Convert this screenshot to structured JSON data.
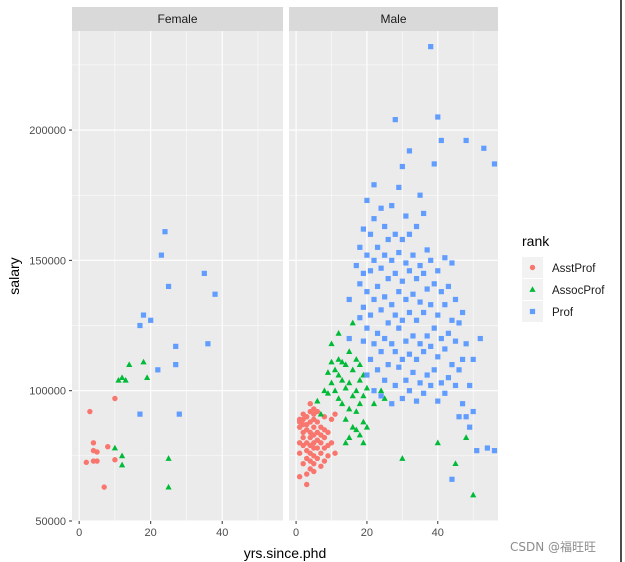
{
  "chart_data": {
    "type": "scatter",
    "facet_by": "sex",
    "facets": [
      "Female",
      "Male"
    ],
    "xlabel": "yrs.since.phd",
    "ylabel": "salary",
    "xlim": [
      -2,
      57
    ],
    "ylim": [
      50000,
      238000
    ],
    "xticks": [
      0,
      20,
      40
    ],
    "yticks": [
      50000,
      100000,
      150000,
      200000
    ],
    "xtick_labels": [
      "0",
      "20",
      "40"
    ],
    "ytick_labels": [
      "50000",
      "100000",
      "150000",
      "200000"
    ],
    "grid": true,
    "legend": {
      "title": "rank",
      "position": "right",
      "entries": [
        "AsstProf",
        "AssocProf",
        "Prof"
      ]
    },
    "colors": {
      "AsstProf": "#F8766D",
      "AssocProf": "#00BA38",
      "Prof": "#619CFF",
      "panel_bg": "#EBEBEB",
      "strip_bg": "#D9D9D9"
    },
    "series": [
      {
        "facet": "Female",
        "rank": "AsstProf",
        "shape": "circle",
        "points": [
          [
            2,
            72500
          ],
          [
            3,
            92000
          ],
          [
            4,
            73000
          ],
          [
            4,
            77000
          ],
          [
            4,
            80000
          ],
          [
            5,
            73000
          ],
          [
            5,
            76500
          ],
          [
            7,
            63000
          ],
          [
            8,
            78500
          ],
          [
            10,
            97000
          ],
          [
            10,
            73500
          ]
        ]
      },
      {
        "facet": "Female",
        "rank": "AssocProf",
        "shape": "triangle",
        "points": [
          [
            10,
            78000
          ],
          [
            11,
            104000
          ],
          [
            12,
            71500
          ],
          [
            12,
            75000
          ],
          [
            12,
            105000
          ],
          [
            13,
            104000
          ],
          [
            14,
            110000
          ],
          [
            18,
            111000
          ],
          [
            19,
            105000
          ],
          [
            25,
            74000
          ],
          [
            25,
            63000
          ]
        ]
      },
      {
        "facet": "Female",
        "rank": "Prof",
        "shape": "square",
        "points": [
          [
            17,
            91000
          ],
          [
            17,
            125000
          ],
          [
            18,
            129000
          ],
          [
            20,
            127000
          ],
          [
            22,
            108000
          ],
          [
            23,
            152000
          ],
          [
            24,
            161000
          ],
          [
            25,
            140000
          ],
          [
            27,
            110000
          ],
          [
            27,
            117000
          ],
          [
            28,
            91000
          ],
          [
            35,
            145000
          ],
          [
            36,
            118000
          ],
          [
            38,
            137000
          ]
        ]
      },
      {
        "facet": "Male",
        "rank": "AsstProf",
        "shape": "circle",
        "points": [
          [
            1,
            67000
          ],
          [
            1,
            76000
          ],
          [
            1,
            80000
          ],
          [
            1,
            86000
          ],
          [
            1,
            88000
          ],
          [
            1,
            89000
          ],
          [
            2,
            72000
          ],
          [
            2,
            79000
          ],
          [
            2,
            82000
          ],
          [
            2,
            84000
          ],
          [
            2,
            87000
          ],
          [
            2,
            89000
          ],
          [
            2,
            91000
          ],
          [
            3,
            64000
          ],
          [
            3,
            68000
          ],
          [
            3,
            74000
          ],
          [
            3,
            77000
          ],
          [
            3,
            80000
          ],
          [
            3,
            85000
          ],
          [
            3,
            87000
          ],
          [
            3,
            90000
          ],
          [
            4,
            70000
          ],
          [
            4,
            73000
          ],
          [
            4,
            76000
          ],
          [
            4,
            79000
          ],
          [
            4,
            82000
          ],
          [
            4,
            84000
          ],
          [
            4,
            88000
          ],
          [
            4,
            92000
          ],
          [
            4,
            95000
          ],
          [
            5,
            69000
          ],
          [
            5,
            72000
          ],
          [
            5,
            75000
          ],
          [
            5,
            78000
          ],
          [
            5,
            80000
          ],
          [
            5,
            83000
          ],
          [
            5,
            86000
          ],
          [
            5,
            89000
          ],
          [
            5,
            91000
          ],
          [
            5,
            93000
          ],
          [
            6,
            74000
          ],
          [
            6,
            78000
          ],
          [
            6,
            81000
          ],
          [
            6,
            84000
          ],
          [
            6,
            88000
          ],
          [
            6,
            92000
          ],
          [
            7,
            71000
          ],
          [
            7,
            76000
          ],
          [
            7,
            80000
          ],
          [
            7,
            83000
          ],
          [
            7,
            86000
          ],
          [
            8,
            73000
          ],
          [
            8,
            78000
          ],
          [
            8,
            82000
          ],
          [
            8,
            85000
          ],
          [
            8,
            90000
          ],
          [
            9,
            75000
          ],
          [
            9,
            79000
          ],
          [
            9,
            84000
          ],
          [
            10,
            80000
          ],
          [
            10,
            89000
          ],
          [
            11,
            76000
          ],
          [
            11,
            91000
          ]
        ]
      },
      {
        "facet": "Male",
        "rank": "AssocProf",
        "shape": "triangle",
        "points": [
          [
            6,
            96000
          ],
          [
            7,
            91000
          ],
          [
            8,
            100000
          ],
          [
            9,
            99000
          ],
          [
            9,
            107000
          ],
          [
            10,
            103000
          ],
          [
            10,
            111000
          ],
          [
            10,
            118000
          ],
          [
            11,
            100000
          ],
          [
            11,
            108000
          ],
          [
            12,
            97000
          ],
          [
            12,
            106000
          ],
          [
            12,
            112000
          ],
          [
            12,
            122000
          ],
          [
            13,
            95000
          ],
          [
            13,
            104000
          ],
          [
            13,
            111000
          ],
          [
            14,
            80000
          ],
          [
            14,
            89000
          ],
          [
            14,
            101000
          ],
          [
            14,
            110000
          ],
          [
            15,
            82000
          ],
          [
            15,
            93000
          ],
          [
            15,
            103000
          ],
          [
            15,
            115000
          ],
          [
            16,
            86000
          ],
          [
            16,
            98000
          ],
          [
            16,
            108000
          ],
          [
            16,
            126000
          ],
          [
            17,
            85000
          ],
          [
            17,
            92000
          ],
          [
            17,
            100000
          ],
          [
            17,
            112000
          ],
          [
            18,
            83000
          ],
          [
            18,
            95000
          ],
          [
            18,
            104000
          ],
          [
            18,
            110000
          ],
          [
            19,
            80000
          ],
          [
            19,
            88000
          ],
          [
            19,
            98000
          ],
          [
            19,
            106000
          ],
          [
            20,
            86000
          ],
          [
            20,
            101000
          ],
          [
            22,
            95000
          ],
          [
            24,
            100000
          ],
          [
            25,
            97000
          ],
          [
            30,
            74000
          ],
          [
            40,
            80000
          ],
          [
            45,
            72000
          ],
          [
            48,
            82000
          ],
          [
            50,
            60000
          ]
        ]
      },
      {
        "facet": "Male",
        "rank": "Prof",
        "shape": "square",
        "points": [
          [
            15,
            120000
          ],
          [
            15,
            135000
          ],
          [
            17,
            148000
          ],
          [
            18,
            128000
          ],
          [
            18,
            141000
          ],
          [
            18,
            155000
          ],
          [
            19,
            119000
          ],
          [
            19,
            132000
          ],
          [
            19,
            145000
          ],
          [
            19,
            162000
          ],
          [
            20,
            106000
          ],
          [
            20,
            124000
          ],
          [
            20,
            138000
          ],
          [
            20,
            152000
          ],
          [
            20,
            173000
          ],
          [
            21,
            112000
          ],
          [
            21,
            129000
          ],
          [
            21,
            146000
          ],
          [
            21,
            160000
          ],
          [
            22,
            100000
          ],
          [
            22,
            118000
          ],
          [
            22,
            135000
          ],
          [
            22,
            150000
          ],
          [
            22,
            166000
          ],
          [
            22,
            179000
          ],
          [
            23,
            108000
          ],
          [
            23,
            122000
          ],
          [
            23,
            140000
          ],
          [
            23,
            155000
          ],
          [
            24,
            98000
          ],
          [
            24,
            115000
          ],
          [
            24,
            131000
          ],
          [
            24,
            147000
          ],
          [
            24,
            170000
          ],
          [
            25,
            104000
          ],
          [
            25,
            120000
          ],
          [
            25,
            136000
          ],
          [
            25,
            152000
          ],
          [
            25,
            163000
          ],
          [
            26,
            110000
          ],
          [
            26,
            126000
          ],
          [
            26,
            143000
          ],
          [
            26,
            158000
          ],
          [
            27,
            95000
          ],
          [
            27,
            118000
          ],
          [
            27,
            133000
          ],
          [
            27,
            150000
          ],
          [
            27,
            171000
          ],
          [
            28,
            102000
          ],
          [
            28,
            115000
          ],
          [
            28,
            129000
          ],
          [
            28,
            145000
          ],
          [
            28,
            160000
          ],
          [
            28,
            204000
          ],
          [
            29,
            109000
          ],
          [
            29,
            124000
          ],
          [
            29,
            138000
          ],
          [
            29,
            153000
          ],
          [
            29,
            178000
          ],
          [
            30,
            97000
          ],
          [
            30,
            112000
          ],
          [
            30,
            127000
          ],
          [
            30,
            142000
          ],
          [
            30,
            158000
          ],
          [
            30,
            186000
          ],
          [
            31,
            104000
          ],
          [
            31,
            119000
          ],
          [
            31,
            135000
          ],
          [
            31,
            149000
          ],
          [
            31,
            167000
          ],
          [
            32,
            100000
          ],
          [
            32,
            114000
          ],
          [
            32,
            130000
          ],
          [
            32,
            146000
          ],
          [
            32,
            160000
          ],
          [
            32,
            192000
          ],
          [
            33,
            107000
          ],
          [
            33,
            121000
          ],
          [
            33,
            137000
          ],
          [
            33,
            152000
          ],
          [
            34,
            96000
          ],
          [
            34,
            112000
          ],
          [
            34,
            127000
          ],
          [
            34,
            143000
          ],
          [
            34,
            163000
          ],
          [
            35,
            103000
          ],
          [
            35,
            118000
          ],
          [
            35,
            134000
          ],
          [
            35,
            148000
          ],
          [
            35,
            175000
          ],
          [
            36,
            99000
          ],
          [
            36,
            115000
          ],
          [
            36,
            130000
          ],
          [
            36,
            145000
          ],
          [
            36,
            168000
          ],
          [
            37,
            106000
          ],
          [
            37,
            121000
          ],
          [
            37,
            139000
          ],
          [
            37,
            154000
          ],
          [
            38,
            102000
          ],
          [
            38,
            117000
          ],
          [
            38,
            133000
          ],
          [
            38,
            150000
          ],
          [
            38,
            232000
          ],
          [
            39,
            108000
          ],
          [
            39,
            124000
          ],
          [
            39,
            141000
          ],
          [
            39,
            187000
          ],
          [
            40,
            96000
          ],
          [
            40,
            113000
          ],
          [
            40,
            129000
          ],
          [
            40,
            146000
          ],
          [
            40,
            205000
          ],
          [
            41,
            103000
          ],
          [
            41,
            120000
          ],
          [
            41,
            138000
          ],
          [
            41,
            196000
          ],
          [
            42,
            99000
          ],
          [
            42,
            116000
          ],
          [
            42,
            133000
          ],
          [
            42,
            151000
          ],
          [
            43,
            105000
          ],
          [
            43,
            122000
          ],
          [
            43,
            140000
          ],
          [
            44,
            110000
          ],
          [
            44,
            127000
          ],
          [
            44,
            149000
          ],
          [
            45,
            102000
          ],
          [
            45,
            119000
          ],
          [
            45,
            135000
          ],
          [
            46,
            108000
          ],
          [
            46,
            126000
          ],
          [
            47,
            95000
          ],
          [
            47,
            112000
          ],
          [
            47,
            130000
          ],
          [
            48,
            90000
          ],
          [
            48,
            118000
          ],
          [
            48,
            196000
          ],
          [
            49,
            86000
          ],
          [
            49,
            102000
          ],
          [
            50,
            92000
          ],
          [
            50,
            112000
          ],
          [
            51,
            77000
          ],
          [
            52,
            120000
          ],
          [
            54,
            78000
          ],
          [
            56,
            77000
          ],
          [
            56,
            187000
          ],
          [
            53,
            193000
          ],
          [
            44,
            66000
          ],
          [
            46,
            90000
          ]
        ]
      }
    ]
  },
  "watermark": "CSDN @福旺旺"
}
